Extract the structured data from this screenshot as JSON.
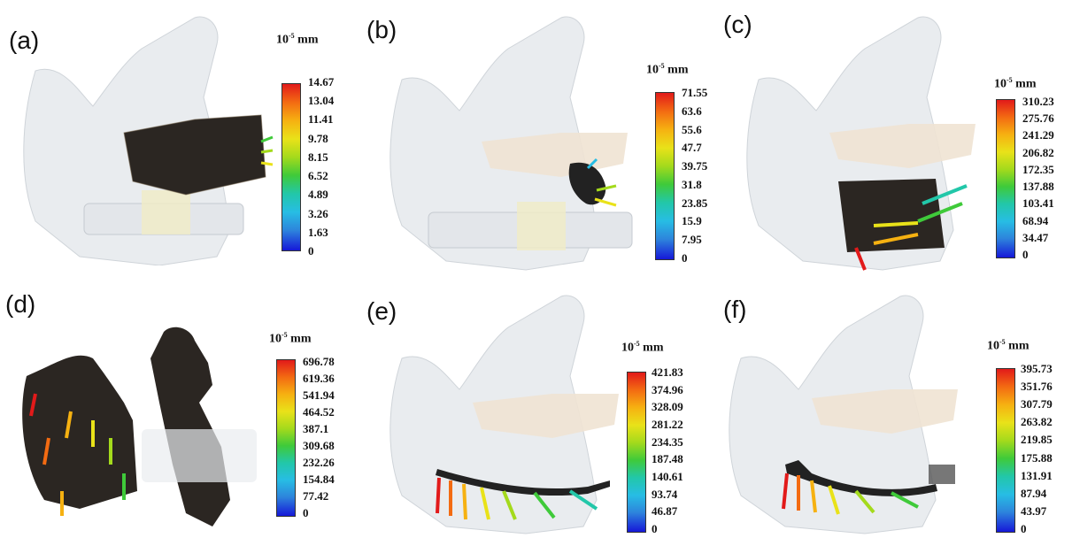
{
  "panels": [
    {
      "label": "(a)",
      "unit_base": "10",
      "unit_exp": "-5",
      "unit_suffix": "mm",
      "ticks": [
        "14.67",
        "13.04",
        "11.41",
        "9.78",
        "8.15",
        "6.52",
        "4.89",
        "3.26",
        "1.63",
        "0"
      ]
    },
    {
      "label": "(b)",
      "unit_base": "10",
      "unit_exp": "-5",
      "unit_suffix": "mm",
      "ticks": [
        "71.55",
        "63.6",
        "55.6",
        "47.7",
        "39.75",
        "31.8",
        "23.85",
        "15.9",
        "7.95",
        "0"
      ]
    },
    {
      "label": "(c)",
      "unit_base": "10",
      "unit_exp": "-5",
      "unit_suffix": "mm",
      "ticks": [
        "310.23",
        "275.76",
        "241.29",
        "206.82",
        "172.35",
        "137.88",
        "103.41",
        "68.94",
        "34.47",
        "0"
      ]
    },
    {
      "label": "(d)",
      "unit_base": "10",
      "unit_exp": "-5",
      "unit_suffix": "mm",
      "ticks": [
        "696.78",
        "619.36",
        "541.94",
        "464.52",
        "387.1",
        "309.68",
        "232.26",
        "154.84",
        "77.42",
        "0"
      ]
    },
    {
      "label": "(e)",
      "unit_base": "10",
      "unit_exp": "-5",
      "unit_suffix": "mm",
      "ticks": [
        "421.83",
        "374.96",
        "328.09",
        "281.22",
        "234.35",
        "187.48",
        "140.61",
        "93.74",
        "46.87",
        "0"
      ]
    },
    {
      "label": "(f)",
      "unit_base": "10",
      "unit_exp": "-5",
      "unit_suffix": "mm",
      "ticks": [
        "395.73",
        "351.76",
        "307.79",
        "263.82",
        "219.85",
        "175.88",
        "131.91",
        "87.94",
        "43.97",
        "0"
      ]
    }
  ],
  "colors": {
    "bone": "#e9ecef",
    "bone_edge": "#cfd4d9",
    "teeth": "#efe3d3",
    "mesh": "#2b2622",
    "implant_plate": "#c9ccd0"
  }
}
